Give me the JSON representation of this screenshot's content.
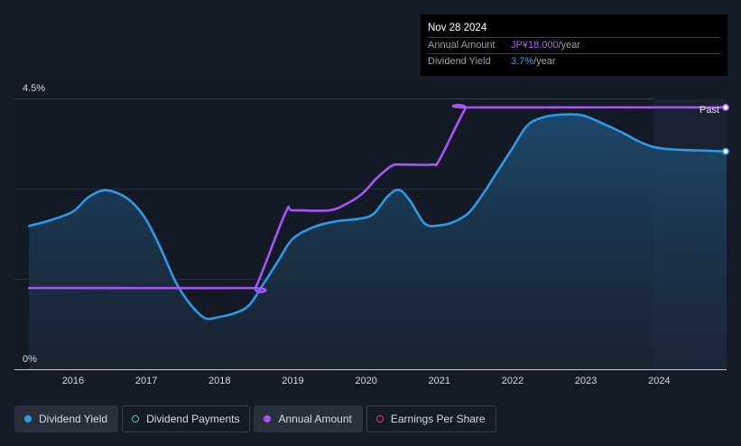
{
  "tooltip": {
    "date": "Nov 28 2024",
    "rows": [
      {
        "key": "Annual Amount",
        "value": "JP¥18.000",
        "unit": "/year"
      },
      {
        "key": "Dividend Yield",
        "value": "3.7%",
        "unit": "/year"
      }
    ]
  },
  "legend": [
    {
      "label": "Dividend Yield",
      "color": "#2e9ae6",
      "filled": true,
      "active": true
    },
    {
      "label": "Dividend Payments",
      "color": "#3ec9b4",
      "filled": false,
      "active": false
    },
    {
      "label": "Annual Amount",
      "color": "#a855f7",
      "filled": true,
      "active": true
    },
    {
      "label": "Earnings Per Share",
      "color": "#d63c82",
      "filled": false,
      "active": false
    }
  ],
  "past_label": "Past",
  "chart_data": {
    "type": "line",
    "y_tick_labels": [
      "4.5%",
      "0%"
    ],
    "ylim": [
      0,
      4.5
    ],
    "x_tick_labels": [
      "2016",
      "2017",
      "2018",
      "2019",
      "2020",
      "2021",
      "2022",
      "2023",
      "2024"
    ],
    "x_ticks": [
      2016,
      2017,
      2018,
      2019,
      2020,
      2021,
      2022,
      2023,
      2024
    ],
    "xlim": [
      2015.2,
      2024.92
    ],
    "past_region_start": 2023.92,
    "series": [
      {
        "name": "Dividend Yield",
        "color": "#2e9ae6",
        "area": true,
        "points": [
          [
            2015.4,
            2.38
          ],
          [
            2015.7,
            2.48
          ],
          [
            2016.0,
            2.62
          ],
          [
            2016.2,
            2.85
          ],
          [
            2016.4,
            2.97
          ],
          [
            2016.6,
            2.93
          ],
          [
            2016.8,
            2.78
          ],
          [
            2017.0,
            2.48
          ],
          [
            2017.2,
            2.0
          ],
          [
            2017.4,
            1.45
          ],
          [
            2017.6,
            1.08
          ],
          [
            2017.8,
            0.85
          ],
          [
            2018.0,
            0.87
          ],
          [
            2018.2,
            0.93
          ],
          [
            2018.4,
            1.06
          ],
          [
            2018.6,
            1.42
          ],
          [
            2018.8,
            1.8
          ],
          [
            2019.0,
            2.17
          ],
          [
            2019.3,
            2.37
          ],
          [
            2019.6,
            2.46
          ],
          [
            2019.9,
            2.5
          ],
          [
            2020.1,
            2.58
          ],
          [
            2020.3,
            2.88
          ],
          [
            2020.45,
            2.98
          ],
          [
            2020.6,
            2.8
          ],
          [
            2020.8,
            2.42
          ],
          [
            2021.0,
            2.39
          ],
          [
            2021.2,
            2.45
          ],
          [
            2021.4,
            2.6
          ],
          [
            2021.6,
            2.92
          ],
          [
            2021.8,
            3.3
          ],
          [
            2022.0,
            3.68
          ],
          [
            2022.2,
            4.05
          ],
          [
            2022.4,
            4.18
          ],
          [
            2022.65,
            4.23
          ],
          [
            2022.95,
            4.22
          ],
          [
            2023.2,
            4.1
          ],
          [
            2023.5,
            3.93
          ],
          [
            2023.7,
            3.8
          ],
          [
            2023.9,
            3.7
          ],
          [
            2024.1,
            3.66
          ],
          [
            2024.4,
            3.64
          ],
          [
            2024.7,
            3.63
          ],
          [
            2024.92,
            3.62
          ]
        ]
      },
      {
        "name": "Annual Amount",
        "color": "#a855f7",
        "area": false,
        "points": [
          [
            2015.4,
            1.35
          ],
          [
            2018.4,
            1.35
          ],
          [
            2018.5,
            1.38
          ],
          [
            2018.9,
            2.6
          ],
          [
            2019.0,
            2.64
          ],
          [
            2019.5,
            2.64
          ],
          [
            2019.75,
            2.76
          ],
          [
            2019.95,
            2.92
          ],
          [
            2020.15,
            3.18
          ],
          [
            2020.35,
            3.38
          ],
          [
            2020.5,
            3.4
          ],
          [
            2020.9,
            3.4
          ],
          [
            2021.0,
            3.48
          ],
          [
            2021.35,
            4.32
          ],
          [
            2021.45,
            4.35
          ],
          [
            2024.92,
            4.35
          ]
        ]
      }
    ]
  }
}
